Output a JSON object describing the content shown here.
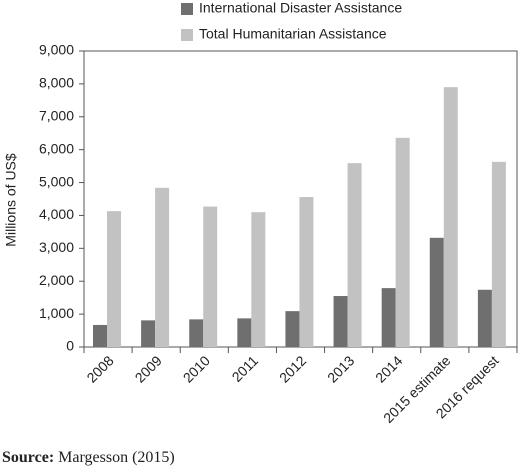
{
  "chart_data": {
    "type": "bar",
    "y_label": "Millions of US$",
    "categories": [
      "2008",
      "2009",
      "2010",
      "2011",
      "2012",
      "2013",
      "2014",
      "2015 estimate",
      "2016 request"
    ],
    "series": [
      {
        "name": "International Disaster Assistance",
        "color": "#6f6f6f",
        "values": [
          670,
          810,
          840,
          870,
          1090,
          1550,
          1790,
          3320,
          1740
        ]
      },
      {
        "name": "Total Humanitarian Assistance",
        "color": "#c2c2c2",
        "values": [
          4130,
          4840,
          4270,
          4100,
          4560,
          5590,
          6360,
          7900,
          5630
        ]
      }
    ],
    "ylim": [
      0,
      9000
    ],
    "yticks": [
      0,
      {
        "value": 1000,
        "label": "1,000"
      },
      {
        "value": 2000,
        "label": "2,000"
      },
      {
        "value": 3000,
        "label": "3,000"
      },
      {
        "value": 4000,
        "label": "4,000"
      },
      {
        "value": 5000,
        "label": "5,000"
      },
      {
        "value": 6000,
        "label": "6,000"
      },
      {
        "value": 7000,
        "label": "7,000"
      },
      {
        "value": 8000,
        "label": "8,000"
      },
      {
        "value": 9000,
        "label": "9,000"
      }
    ],
    "source": {
      "label": "Source:",
      "text": "Margesson (2015)"
    }
  }
}
